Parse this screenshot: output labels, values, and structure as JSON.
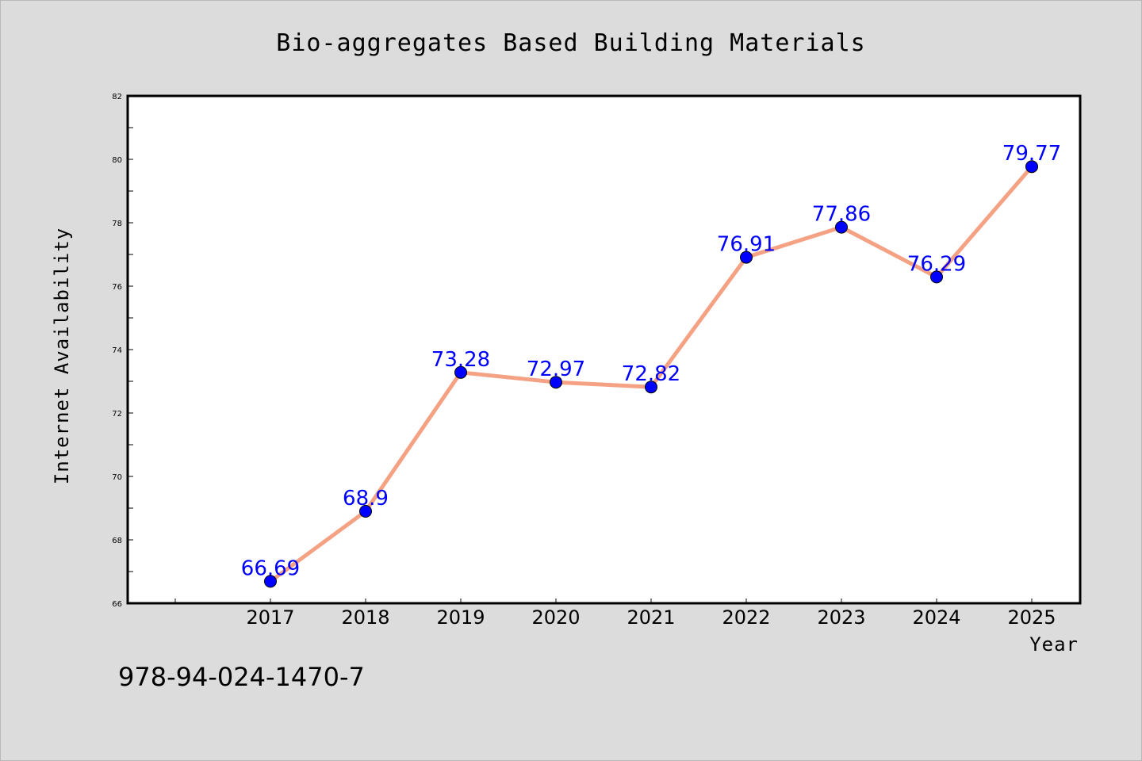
{
  "chart_data": {
    "type": "line",
    "title": "Bio-aggregates Based Building Materials",
    "xlabel": "Year",
    "ylabel": "Internet Availability",
    "x": [
      "2017",
      "2018",
      "2019",
      "2020",
      "2021",
      "2022",
      "2023",
      "2024",
      "2025"
    ],
    "series": [
      {
        "values": [
          66.69,
          68.9,
          73.28,
          72.97,
          72.82,
          76.91,
          77.86,
          76.29,
          79.77
        ]
      }
    ],
    "data_labels": [
      "66.69",
      "68.9",
      "73.28",
      "72.97",
      "72.82",
      "76.91",
      "77.86",
      "76.29",
      "79.77"
    ],
    "ylim": [
      66,
      82
    ],
    "yticks": [
      "66",
      "68",
      "70",
      "72",
      "74",
      "76",
      "78",
      "80",
      "82"
    ],
    "grid": false,
    "colors": {
      "line": "#f4a283",
      "marker": "#0000ff",
      "label": "#0000ff",
      "background": "#dcdcdc",
      "plot": "#ffffff"
    }
  },
  "footer": {
    "isbn": "978-94-024-1470-7"
  }
}
